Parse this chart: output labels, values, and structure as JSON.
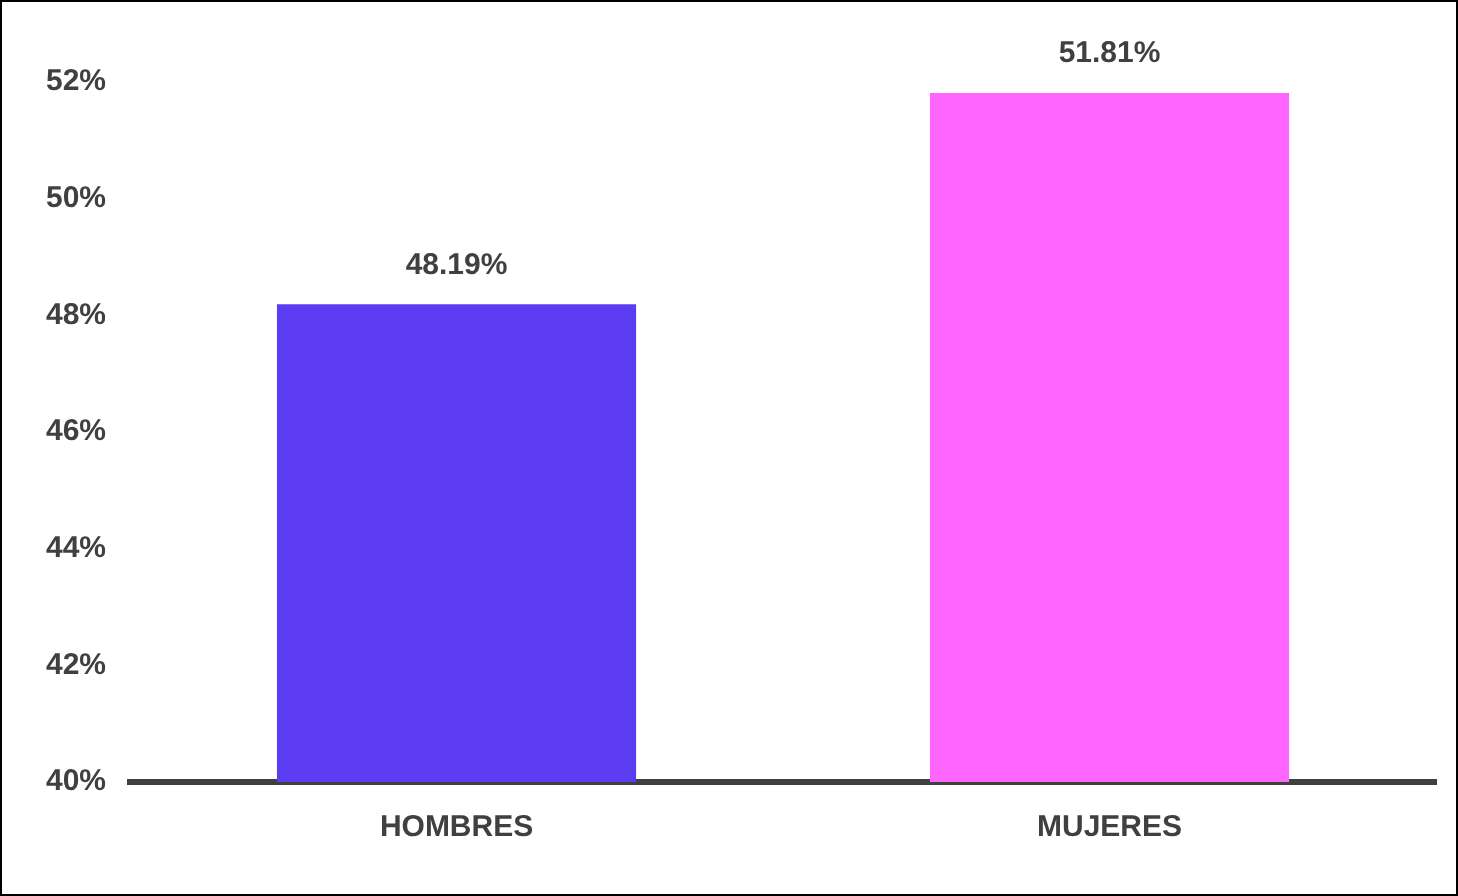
{
  "chart_data": {
    "type": "bar",
    "categories": [
      "HOMBRES",
      "MUJERES"
    ],
    "values": [
      48.19,
      51.81
    ],
    "colors": [
      "#5b3cf0",
      "#ff66ff"
    ],
    "value_labels": [
      "48.19%",
      "51.81%"
    ],
    "ylim": [
      40,
      52
    ],
    "yticks": [
      {
        "value": 40,
        "label": "40%"
      },
      {
        "value": 42,
        "label": "42%"
      },
      {
        "value": 44,
        "label": "44%"
      },
      {
        "value": 46,
        "label": "46%"
      },
      {
        "value": 48,
        "label": "48%"
      },
      {
        "value": 50,
        "label": "50%"
      },
      {
        "value": 52,
        "label": "52%"
      }
    ],
    "grid": false,
    "legend": false
  }
}
